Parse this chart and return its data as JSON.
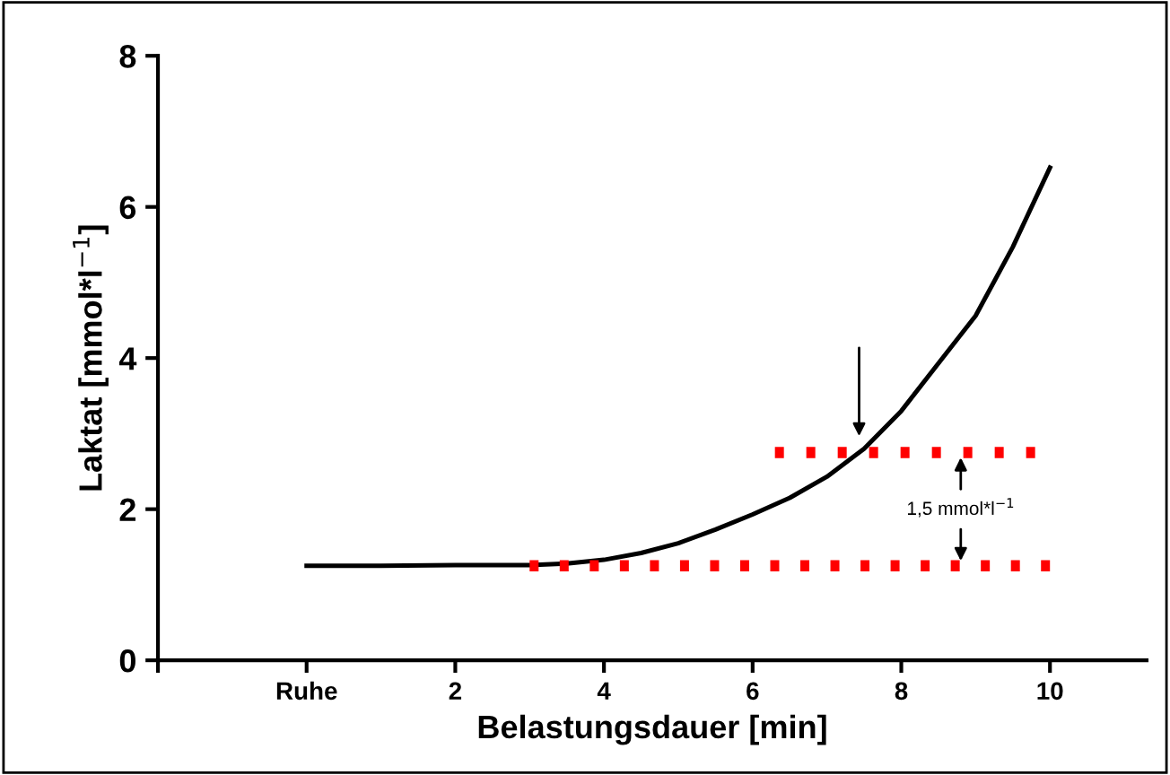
{
  "chart_data": {
    "type": "line",
    "xlabel": "Belastungsdauer [min]",
    "ylabel": "Laktat [mmol*l$^{−1}$]",
    "xlim": [
      -2,
      11.3
    ],
    "ylim": [
      0,
      8
    ],
    "xticks": [
      {
        "value": -2,
        "label": null
      },
      {
        "value": 0,
        "label": "Ruhe"
      },
      2,
      4,
      6,
      8,
      10
    ],
    "yticks": [
      0,
      2,
      4,
      6,
      8
    ],
    "grid": false,
    "series": [
      {
        "color": "#000000",
        "line_style": "solid",
        "x": [
          0,
          1,
          2,
          3,
          3.5,
          4,
          4.5,
          5,
          5.5,
          6,
          6.5,
          7,
          7.5,
          8,
          8.5,
          9,
          9.5,
          10
        ],
        "values": [
          1.25,
          1.25,
          1.26,
          1.26,
          1.28,
          1.33,
          1.42,
          1.55,
          1.73,
          1.93,
          2.15,
          2.43,
          2.8,
          3.3,
          3.93,
          4.56,
          5.47,
          6.52
        ]
      },
      {
        "color": "#ff0000",
        "line_style": "dotted",
        "x": [
          6.3,
          9.8
        ],
        "values": [
          2.75,
          2.75
        ]
      },
      {
        "color": "#ff0000",
        "line_style": "dotted",
        "x": [
          3,
          10
        ],
        "values": [
          1.25,
          1.25
        ]
      }
    ],
    "annotations": [
      "1,5 mmol*l$^{−1}$"
    ]
  }
}
